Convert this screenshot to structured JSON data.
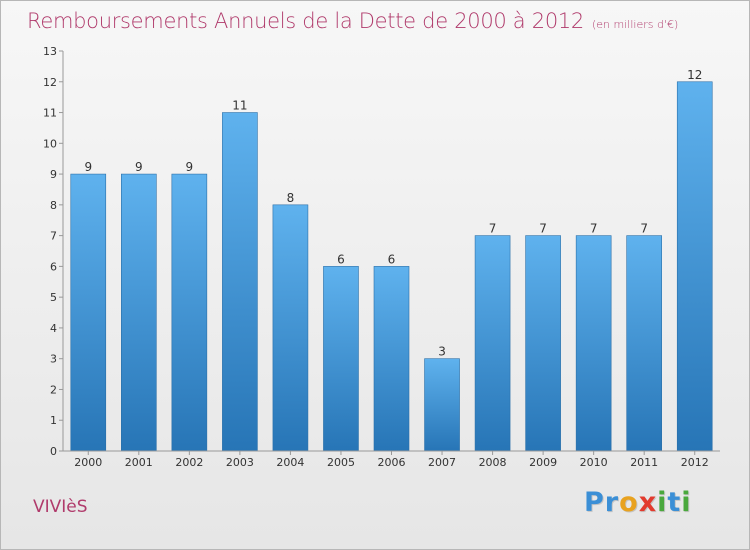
{
  "header": {
    "title": "Remboursements Annuels de la Dette de 2000 à 2012",
    "unit": "(en milliers d'€)"
  },
  "footer": {
    "place": "VIVIèS",
    "logo_letters": [
      "P",
      "r",
      "o",
      "x",
      "i",
      "t",
      "i"
    ]
  },
  "colors": {
    "title": "#b03a6b",
    "bar_top": "#5fb2ee",
    "bar_bottom": "#2775b6",
    "logo": [
      "#3b8fd6",
      "#3b8fd6",
      "#e8a21f",
      "#e23b2e",
      "#4aa83d",
      "#3b8fd6",
      "#4aa83d"
    ]
  },
  "chart_data": {
    "type": "bar",
    "title": "Remboursements Annuels de la Dette de 2000 à 2012",
    "xlabel": "",
    "ylabel": "",
    "categories": [
      "2000",
      "2001",
      "2002",
      "2003",
      "2004",
      "2005",
      "2006",
      "2007",
      "2008",
      "2009",
      "2010",
      "2011",
      "2012"
    ],
    "values": [
      9,
      9,
      9,
      11,
      8,
      6,
      6,
      3,
      7,
      7,
      7,
      7,
      12
    ],
    "ylim": [
      0,
      13
    ],
    "yticks": [
      0,
      1,
      2,
      3,
      4,
      5,
      6,
      7,
      8,
      9,
      10,
      11,
      12,
      13
    ],
    "grid": false,
    "legend": "none"
  }
}
